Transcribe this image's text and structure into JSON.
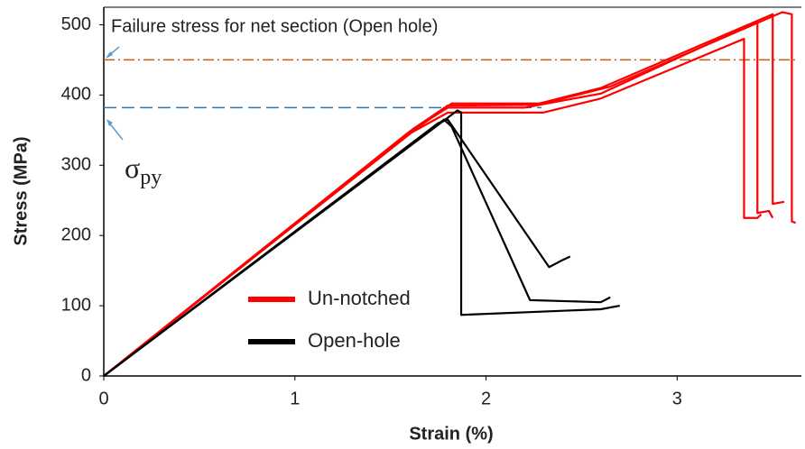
{
  "chart_data": {
    "type": "line",
    "xlabel": "Strain (%)",
    "ylabel": "Stress (MPa)",
    "xlim": [
      0,
      3.65
    ],
    "ylim": [
      0,
      525
    ],
    "xticks": [
      0,
      1,
      2,
      3
    ],
    "yticks": [
      0,
      100,
      200,
      300,
      400,
      500
    ],
    "grid": false,
    "legend": "center",
    "series": [
      {
        "name": "Un-notched",
        "color": "#ff0000",
        "curves": [
          {
            "x": [
              0,
              1.6,
              1.8,
              2.3,
              2.6,
              3.35,
              3.35,
              3.42,
              3.44
            ],
            "values": [
              0,
              345,
              375,
              375,
              395,
              480,
              225,
              225,
              230
            ]
          },
          {
            "x": [
              0,
              1.6,
              1.8,
              2.2,
              2.6,
              3.42,
              3.42,
              3.48,
              3.5
            ],
            "values": [
              0,
              348,
              382,
              382,
              402,
              505,
              232,
              235,
              225
            ]
          },
          {
            "x": [
              0,
              1.62,
              1.8,
              2.25,
              2.6,
              3.5,
              3.5,
              3.56
            ],
            "values": [
              0,
              352,
              385,
              386,
              410,
              515,
              245,
              248
            ]
          },
          {
            "x": [
              0,
              1.65,
              1.82,
              2.3,
              2.65,
              3.55,
              3.6,
              3.6,
              3.62
            ],
            "values": [
              0,
              355,
              388,
              388,
              412,
              518,
              515,
              220,
              218
            ]
          }
        ]
      },
      {
        "name": "Open-hole",
        "color": "#000000",
        "curves": [
          {
            "x": [
              0,
              1.75,
              1.8,
              2.33,
              2.4,
              2.44
            ],
            "values": [
              0,
              360,
              365,
              155,
              165,
              170
            ]
          },
          {
            "x": [
              0,
              1.78,
              1.82,
              2.23,
              2.6,
              2.65
            ],
            "values": [
              0,
              365,
              355,
              108,
              105,
              112
            ]
          },
          {
            "x": [
              0,
              1.85,
              1.87,
              1.87,
              2.6,
              2.7
            ],
            "values": [
              0,
              378,
              375,
              87,
              95,
              100
            ]
          }
        ]
      }
    ],
    "reference_lines": [
      {
        "value": 450,
        "xlim": [
          0,
          3.63
        ],
        "color": "#c55a11",
        "style": "dashdot"
      },
      {
        "value": 382,
        "xlim": [
          0,
          2.29
        ],
        "color": "#2e75b6",
        "style": "dashed"
      }
    ],
    "annotations": {
      "failure": "Failure stress for net section (Open hole)",
      "yield": {
        "symbol": "σ",
        "subscript": "py"
      }
    }
  }
}
